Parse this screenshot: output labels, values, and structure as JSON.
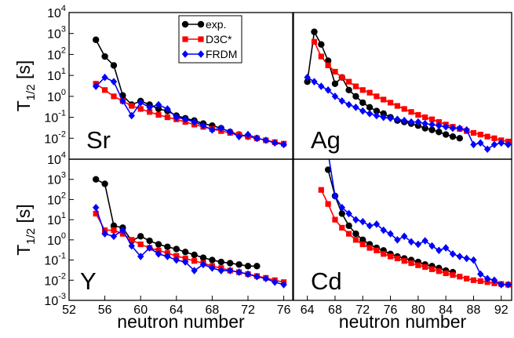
{
  "chart_data": [
    {
      "type": "line",
      "label": "Sr",
      "ylabel": {
        "main": "T",
        "sub": "1/2",
        "unit": "[s]"
      },
      "xlim": [
        52,
        77
      ],
      "ylim": [
        0.001,
        10000
      ],
      "log_y": true,
      "yticks": [
        {
          "value": 10000,
          "label": "10",
          "exponent": "4"
        },
        {
          "value": 1000,
          "label": "10",
          "exponent": "3"
        },
        {
          "value": 100,
          "label": "10",
          "exponent": "2"
        },
        {
          "value": 10,
          "label": "10",
          "exponent": "1"
        },
        {
          "value": 1,
          "label": "10",
          "exponent": "0"
        },
        {
          "value": 0.1,
          "label": "10",
          "exponent": "-1"
        },
        {
          "value": 0.01,
          "label": "10",
          "exponent": "-2"
        }
      ],
      "legend": "top-right",
      "series": [
        {
          "name": "exp.",
          "color": "#000000",
          "marker": "circle",
          "x": [
            55,
            56,
            57,
            58,
            59,
            60,
            61,
            62,
            63,
            64,
            65,
            66,
            67,
            68,
            69,
            70,
            71,
            72,
            73
          ],
          "values": [
            500,
            80,
            30,
            1.1,
            0.4,
            0.6,
            0.4,
            0.25,
            0.2,
            0.12,
            0.09,
            0.07,
            0.05,
            0.04,
            0.03,
            0.02,
            0.015,
            0.012,
            0.01
          ]
        },
        {
          "name": "D3C*",
          "color": "#ff0000",
          "marker": "square",
          "x": [
            55,
            56,
            57,
            58,
            59,
            60,
            61,
            62,
            63,
            64,
            65,
            66,
            67,
            68,
            69,
            70,
            71,
            72,
            73,
            74,
            75,
            76
          ],
          "values": [
            4,
            2,
            1,
            0.6,
            0.35,
            0.25,
            0.18,
            0.13,
            0.1,
            0.08,
            0.06,
            0.045,
            0.035,
            0.028,
            0.022,
            0.018,
            0.015,
            0.012,
            0.01,
            0.008,
            0.0065,
            0.0055
          ]
        },
        {
          "name": "FRDM",
          "color": "#0000ff",
          "marker": "diamond",
          "x": [
            55,
            56,
            57,
            58,
            59,
            60,
            61,
            62,
            63,
            64,
            65,
            66,
            67,
            68,
            69,
            70,
            71,
            72,
            73,
            74,
            75,
            76
          ],
          "values": [
            3,
            8,
            5,
            0.6,
            0.12,
            0.5,
            0.3,
            0.4,
            0.25,
            0.1,
            0.08,
            0.06,
            0.04,
            0.025,
            0.03,
            0.02,
            0.012,
            0.015,
            0.01,
            0.008,
            0.006,
            0.005
          ]
        }
      ]
    },
    {
      "type": "line",
      "label": "Ag",
      "xlim": [
        62,
        93.5
      ],
      "ylim": [
        0.001,
        10000
      ],
      "log_y": true,
      "series": [
        {
          "color": "#000000",
          "marker": "circle",
          "x": [
            64,
            65,
            66,
            67,
            68,
            69,
            70,
            71,
            72,
            73,
            74,
            75,
            76,
            77,
            78,
            79,
            80,
            81,
            82,
            83,
            84,
            85,
            86
          ],
          "values": [
            5,
            1200,
            300,
            50,
            4,
            8,
            2,
            1,
            0.5,
            0.3,
            0.2,
            0.15,
            0.1,
            0.07,
            0.06,
            0.05,
            0.04,
            0.03,
            0.025,
            0.02,
            0.015,
            0.012,
            0.01
          ]
        },
        {
          "color": "#ff0000",
          "marker": "square",
          "x": [
            65,
            66,
            67,
            68,
            69,
            70,
            71,
            72,
            73,
            74,
            75,
            76,
            77,
            78,
            79,
            80,
            81,
            82,
            83,
            84,
            85,
            86,
            87,
            88,
            89,
            90,
            91,
            92,
            93
          ],
          "values": [
            400,
            80,
            30,
            15,
            8,
            5,
            3,
            2,
            1.5,
            1,
            0.7,
            0.5,
            0.35,
            0.25,
            0.18,
            0.13,
            0.1,
            0.08,
            0.06,
            0.045,
            0.035,
            0.028,
            0.022,
            0.018,
            0.015,
            0.012,
            0.01,
            0.008,
            0.007
          ]
        },
        {
          "color": "#0000ff",
          "marker": "diamond",
          "x": [
            64,
            65,
            66,
            67,
            68,
            69,
            70,
            71,
            72,
            73,
            74,
            75,
            76,
            77,
            78,
            79,
            80,
            81,
            82,
            83,
            84,
            85,
            86,
            87,
            88,
            89,
            90,
            91,
            92,
            93
          ],
          "values": [
            8,
            5,
            3,
            2,
            1,
            0.6,
            0.4,
            0.3,
            0.2,
            0.15,
            0.12,
            0.1,
            0.09,
            0.08,
            0.07,
            0.06,
            0.06,
            0.05,
            0.045,
            0.04,
            0.035,
            0.03,
            0.03,
            0.025,
            0.005,
            0.006,
            0.003,
            0.005,
            0.006,
            0.005
          ]
        }
      ]
    },
    {
      "type": "line",
      "label": "Y",
      "ylabel": {
        "main": "T",
        "sub": "1/2",
        "unit": "[s]"
      },
      "xlabel": "neutron number",
      "xlim": [
        52,
        77
      ],
      "ylim": [
        0.001,
        10000
      ],
      "log_y": true,
      "xticks": [
        52,
        56,
        60,
        64,
        68,
        72,
        76
      ],
      "yticks": [
        {
          "value": 10000,
          "label": "10",
          "exponent": "4"
        },
        {
          "value": 1000,
          "label": "10",
          "exponent": "3"
        },
        {
          "value": 100,
          "label": "10",
          "exponent": "2"
        },
        {
          "value": 10,
          "label": "10",
          "exponent": "1"
        },
        {
          "value": 1,
          "label": "10",
          "exponent": "0"
        },
        {
          "value": 0.1,
          "label": "10",
          "exponent": "-1"
        },
        {
          "value": 0.01,
          "label": "10",
          "exponent": "-2"
        },
        {
          "value": 0.001,
          "label": "10",
          "exponent": "-3"
        }
      ],
      "series": [
        {
          "color": "#000000",
          "marker": "circle",
          "x": [
            55,
            56,
            57,
            58,
            59,
            60,
            61,
            62,
            63,
            64,
            65,
            66,
            67,
            68,
            69,
            70,
            71,
            72,
            73
          ],
          "values": [
            1000,
            600,
            5,
            4,
            0.9,
            1.5,
            0.9,
            0.6,
            0.45,
            0.35,
            0.25,
            0.18,
            0.13,
            0.1,
            0.08,
            0.07,
            0.06,
            0.05,
            0.05
          ]
        },
        {
          "color": "#ff0000",
          "marker": "square",
          "x": [
            55,
            56,
            57,
            58,
            59,
            60,
            61,
            62,
            63,
            64,
            65,
            66,
            67,
            68,
            69,
            70,
            71,
            72,
            73,
            74,
            75,
            76
          ],
          "values": [
            20,
            3,
            3,
            2,
            1,
            0.6,
            0.4,
            0.3,
            0.22,
            0.16,
            0.12,
            0.09,
            0.07,
            0.05,
            0.04,
            0.03,
            0.025,
            0.02,
            0.016,
            0.013,
            0.01,
            0.008
          ]
        },
        {
          "color": "#0000ff",
          "marker": "diamond",
          "x": [
            55,
            56,
            57,
            58,
            59,
            60,
            61,
            62,
            63,
            64,
            65,
            66,
            67,
            68,
            69,
            70,
            71,
            72,
            73,
            74,
            75,
            76
          ],
          "values": [
            40,
            2,
            1.5,
            3,
            0.5,
            0.15,
            0.4,
            0.2,
            0.15,
            0.1,
            0.08,
            0.03,
            0.06,
            0.04,
            0.03,
            0.03,
            0.025,
            0.02,
            0.015,
            0.012,
            0.008,
            0.006
          ]
        }
      ]
    },
    {
      "type": "line",
      "label": "Cd",
      "xlabel": "neutron number",
      "xlim": [
        62,
        93.5
      ],
      "ylim": [
        0.001,
        10000
      ],
      "log_y": true,
      "xticks": [
        64,
        68,
        72,
        76,
        80,
        84,
        88,
        92
      ],
      "series": [
        {
          "color": "#000000",
          "marker": "circle",
          "x": [
            67,
            68,
            69,
            70,
            71,
            72,
            73,
            74,
            75,
            76,
            77,
            78,
            79,
            80,
            81,
            82,
            83,
            84,
            85
          ],
          "values": [
            3000,
            150,
            20,
            5,
            2,
            1,
            0.6,
            0.4,
            0.3,
            0.2,
            0.15,
            0.12,
            0.1,
            0.08,
            0.06,
            0.05,
            0.04,
            0.03,
            0.025
          ]
        },
        {
          "color": "#ff0000",
          "marker": "square",
          "x": [
            66,
            67,
            68,
            69,
            70,
            71,
            72,
            73,
            74,
            75,
            76,
            77,
            78,
            79,
            80,
            81,
            82,
            83,
            84,
            85,
            86,
            87,
            88,
            89,
            90,
            91,
            92,
            93
          ],
          "values": [
            300,
            60,
            10,
            4,
            2,
            1,
            0.6,
            0.4,
            0.3,
            0.2,
            0.15,
            0.12,
            0.09,
            0.07,
            0.055,
            0.045,
            0.035,
            0.028,
            0.022,
            0.018,
            0.015,
            0.012,
            0.01,
            0.009,
            0.008,
            0.007,
            0.0065,
            0.006
          ]
        },
        {
          "color": "#0000ff",
          "marker": "diamond",
          "x": [
            67,
            68,
            69,
            70,
            71,
            72,
            73,
            74,
            75,
            76,
            77,
            78,
            79,
            80,
            81,
            82,
            83,
            84,
            85,
            86,
            87,
            88,
            89,
            90,
            91,
            92,
            93
          ],
          "values": [
            20000,
            150,
            40,
            20,
            10,
            8,
            5,
            6,
            3,
            2,
            1,
            1.5,
            0.8,
            0.6,
            0.9,
            0.5,
            0.3,
            0.4,
            0.2,
            0.15,
            0.12,
            0.1,
            0.02,
            0.012,
            0.01,
            0.006,
            0.006
          ]
        }
      ]
    }
  ]
}
